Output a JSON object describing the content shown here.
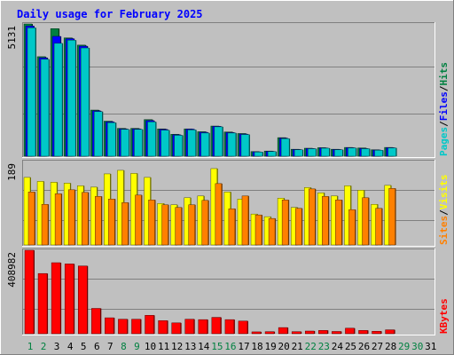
{
  "chart_data": {
    "type": "bar",
    "title": "Daily usage for February 2025",
    "categories": [
      "1",
      "2",
      "3",
      "4",
      "5",
      "6",
      "7",
      "8",
      "9",
      "10",
      "11",
      "12",
      "13",
      "14",
      "15",
      "16",
      "17",
      "18",
      "19",
      "20",
      "21",
      "22",
      "23",
      "24",
      "25",
      "26",
      "27",
      "28",
      "29",
      "30",
      "31"
    ],
    "weekend_days": [
      "1",
      "2",
      "8",
      "9",
      "15",
      "16",
      "22",
      "23",
      "29",
      "30"
    ],
    "panels": [
      {
        "name": "pages-files-hits",
        "ymax_label": "5131",
        "ymax": 5131,
        "legend": [
          "Pages",
          "/",
          "Files",
          "/",
          "Hits"
        ],
        "legend_colors": [
          "#00c8c8",
          "#000000",
          "#0000ff",
          "#000000",
          "#008040"
        ],
        "series": [
          {
            "name": "Hits",
            "color": "#008040",
            "values": [
              5131,
              3860,
              4950,
              4590,
              4310,
              1790,
              1360,
              1080,
              1080,
              1420,
              1060,
              850,
              1060,
              950,
              1170,
              940,
              880,
              180,
              200,
              720,
              270,
              310,
              330,
              270,
              340,
              320,
              250,
              340,
              0,
              0,
              0
            ]
          },
          {
            "name": "Files",
            "color": "#0000ff",
            "values": [
              5050,
              3820,
              4650,
              4560,
              4270,
              1760,
              1330,
              1060,
              1060,
              1380,
              1040,
              830,
              1050,
              930,
              1160,
              920,
              860,
              170,
              190,
              700,
              260,
              300,
              320,
              260,
              330,
              300,
              240,
              330,
              0,
              0,
              0
            ]
          },
          {
            "name": "Pages",
            "color": "#00c8c8",
            "values": [
              4980,
              3760,
              4380,
              4500,
              4200,
              1730,
              1300,
              1040,
              1040,
              1330,
              1010,
              810,
              1020,
              900,
              1140,
              900,
              840,
              160,
              180,
              680,
              250,
              290,
              310,
              250,
              320,
              290,
              230,
              320,
              0,
              0,
              0
            ]
          }
        ]
      },
      {
        "name": "visits-sites",
        "ymax_label": "189",
        "ymax": 189,
        "legend": [
          "Sites",
          "/",
          "Visits"
        ],
        "legend_colors": [
          "#ff8000",
          "#000000",
          "#ffff00"
        ],
        "series": [
          {
            "name": "Visits",
            "color": "#ffff00",
            "values": [
              153,
              144,
              142,
              140,
              134,
              131,
              161,
              169,
              162,
              153,
              94,
              91,
              107,
              111,
              173,
              120,
              104,
              70,
              64,
              106,
              85,
              130,
              118,
              111,
              134,
              124,
              92,
              135,
              0,
              0,
              0
            ]
          },
          {
            "name": "Sites",
            "color": "#ff8000",
            "values": [
              120,
              92,
              116,
              125,
              119,
              110,
              104,
              96,
              113,
              102,
              91,
              85,
              91,
              101,
              139,
              82,
              111,
              68,
              60,
              102,
              83,
              127,
              110,
              102,
              80,
              107,
              83,
              128,
              0,
              0,
              0
            ]
          }
        ]
      },
      {
        "name": "kbytes",
        "ymax_label": "408982",
        "ymax": 408982,
        "legend": [
          "KBytes"
        ],
        "legend_colors": [
          "#ff0000"
        ],
        "series": [
          {
            "name": "KBytes",
            "color": "#ff0000",
            "values": [
              408982,
              295000,
              348000,
              342000,
              332000,
              124000,
              78000,
              71000,
              71000,
              90000,
              64000,
              53000,
              71000,
              69000,
              80000,
              69000,
              62000,
              9000,
              10000,
              30000,
              10000,
              13000,
              16000,
              11000,
              27000,
              16000,
              12000,
              19000,
              0,
              0,
              0
            ]
          }
        ]
      }
    ]
  }
}
